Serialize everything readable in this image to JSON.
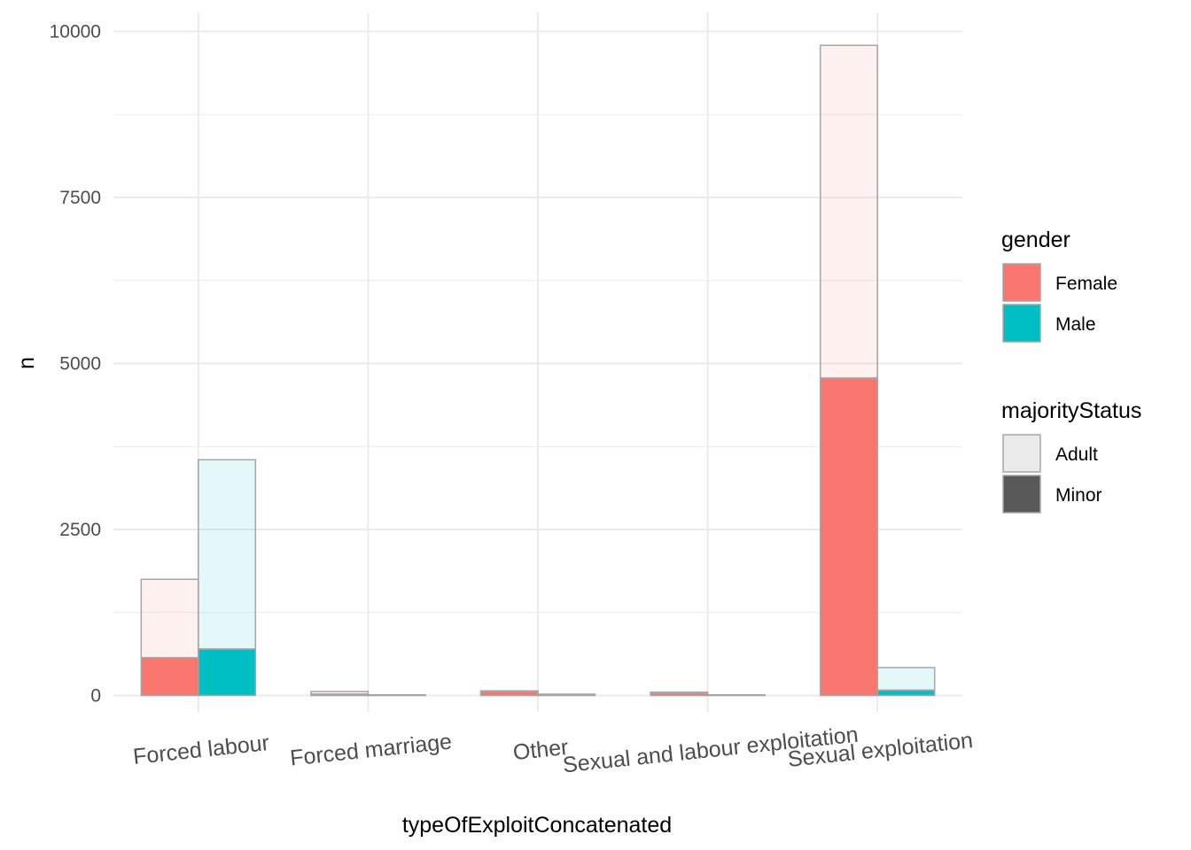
{
  "chart_data": {
    "type": "bar",
    "xlabel": "typeOfExploitConcatenated",
    "ylabel": "n",
    "ylim": [
      -100,
      10280
    ],
    "y_ticks": [
      0,
      2500,
      5000,
      7500,
      10000
    ],
    "y_tick_labels": [
      "0",
      "2500",
      "5000",
      "7500",
      "10000"
    ],
    "grid": true,
    "categories": [
      "Forced labour",
      "Forced marriage",
      "Other",
      "Sexual and labour exploitation",
      "Sexual exploitation"
    ],
    "dodge_by": "gender",
    "stack_by": "majorityStatus",
    "series": [
      {
        "gender": "Female",
        "majorityStatus": "Minor",
        "values": [
          570,
          20,
          65,
          35,
          4780
        ]
      },
      {
        "gender": "Female",
        "majorityStatus": "Adult",
        "values": [
          1180,
          40,
          5,
          15,
          5010
        ]
      },
      {
        "gender": "Male",
        "majorityStatus": "Minor",
        "values": [
          700,
          5,
          10,
          5,
          80
        ]
      },
      {
        "gender": "Male",
        "majorityStatus": "Adult",
        "values": [
          2850,
          5,
          10,
          5,
          340
        ]
      }
    ],
    "colors": {
      "Female": "#F8766D",
      "Male": "#00BFC4",
      "adult_fill_opacity": 0.1,
      "bar_outline": "#A6A6A6"
    },
    "legend": {
      "placement": "right",
      "gender": {
        "title": "gender",
        "items": [
          "Female",
          "Male"
        ],
        "swatch_colors": [
          "#F8766D",
          "#00BFC4"
        ]
      },
      "majorityStatus": {
        "title": "majorityStatus",
        "items": [
          "Adult",
          "Minor"
        ],
        "swatch_colors": [
          "#EBEBEB",
          "#595959"
        ]
      }
    }
  }
}
